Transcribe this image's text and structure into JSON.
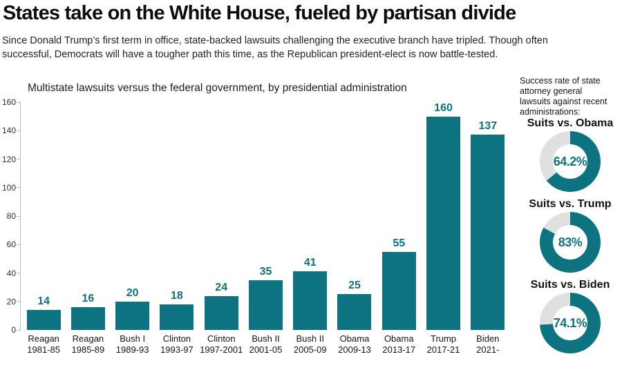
{
  "header": {
    "title": "States take on the White House, fueled by partisan divide",
    "subtitle": "Since Donald Trump’s first term in office, state-backed lawsuits challenging the executive branch have tripled. Though often\nsuccessful, Democrats will have a tougher path this time, as the Republican president-elect is now battle-tested."
  },
  "colors": {
    "teal": "#0d7380",
    "donut_track": "#e0e0e0",
    "axis": "#bcbcbc"
  },
  "chart_data": [
    {
      "type": "bar",
      "title": "Multistate lawsuits versus the federal government, by presidential administration",
      "categories": [
        {
          "name": "Reagan",
          "years": "1981-85"
        },
        {
          "name": "Reagan",
          "years": "1985-89"
        },
        {
          "name": "Bush I",
          "years": "1989-93"
        },
        {
          "name": "Clinton",
          "years": "1993-97"
        },
        {
          "name": "Clinton",
          "years": "1997-2001"
        },
        {
          "name": "Bush II",
          "years": "2001-05"
        },
        {
          "name": "Bush II",
          "years": "2005-09"
        },
        {
          "name": "Obama",
          "years": "2009-13"
        },
        {
          "name": "Obama",
          "years": "2013-17"
        },
        {
          "name": "Trump",
          "years": "2017-21"
        },
        {
          "name": "Biden",
          "years": "2021-"
        }
      ],
      "values": [
        14,
        16,
        20,
        18,
        24,
        35,
        41,
        25,
        55,
        160,
        137
      ],
      "xlabel": "",
      "ylabel": "",
      "ylim": [
        0,
        160
      ],
      "yticks": [
        0,
        20,
        40,
        60,
        80,
        100,
        120,
        140,
        160
      ],
      "grid": false,
      "bar_color": "#0d7380",
      "value_labels": true,
      "legend": "none"
    },
    {
      "type": "pie",
      "title": "Success rate of state\nattorney general\nlawsuits against recent\nadministrations:",
      "donuts": [
        {
          "label": "Suits vs. Obama",
          "value": 64.2,
          "display": "64.2%"
        },
        {
          "label": "Suits vs. Trump",
          "value": 83,
          "display": "83%"
        },
        {
          "label": "Suits vs. Biden",
          "value": 74.1,
          "display": "74.1%"
        }
      ],
      "fill_color": "#0d7380",
      "track_color": "#e0e0e0",
      "start_angle": "top-clockwise"
    }
  ]
}
